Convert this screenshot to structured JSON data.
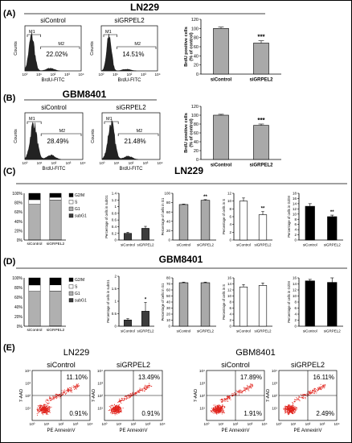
{
  "panels": {
    "A": {
      "label": "(A)",
      "title": "LN229",
      "hist1": {
        "name": "siControl",
        "m1": "M1",
        "m2": "M2",
        "pct": "22.02%",
        "ylabel": "Counts",
        "xlabel": "BrdU-FITC"
      },
      "hist2": {
        "name": "siGRPEL2",
        "m1": "M1",
        "m2": "M2",
        "pct": "14.51%",
        "ylabel": "Counts",
        "xlabel": "BrdU-FITC"
      }
    },
    "B": {
      "label": "(B)",
      "title": "GBM8401",
      "hist1": {
        "name": "siControl",
        "m1": "M1",
        "m2": "M2",
        "pct": "28.49%",
        "ylabel": "Counts",
        "xlabel": "BrdU-FITC"
      },
      "hist2": {
        "name": "siGRPEL2",
        "m1": "M1",
        "m2": "M2",
        "pct": "21.48%",
        "ylabel": "Counts",
        "xlabel": "BrdU-FITC"
      }
    },
    "C": {
      "label": "(C)",
      "title": "LN229"
    },
    "D": {
      "label": "(D)",
      "title": "GBM8401"
    },
    "E": {
      "label": "(E)",
      "cell1": "LN229",
      "cell2": "GBM8401",
      "plots": [
        {
          "name": "siControl",
          "ur": "11.10%",
          "lr": "0.91%"
        },
        {
          "name": "siGRPEL2",
          "ur": "13.49%",
          "lr": "0.91%"
        },
        {
          "name": "siControl",
          "ur": "17.89%",
          "lr": "1.91%"
        },
        {
          "name": "siGRPEL2",
          "ur": "16.11%",
          "lr": "2.49%"
        }
      ],
      "ylabel": "7-AAD",
      "xlabel": "PE AnnexinV"
    }
  },
  "flow_ticks": [
    "10⁰",
    "10¹",
    "10²",
    "10³",
    "10⁴"
  ],
  "flow_yticks": [
    "0",
    "10¹",
    "10²",
    "10³",
    "10⁴"
  ],
  "colors": {
    "gray_bar": "#a9a9a9",
    "dark_bar": "#3c3c3c",
    "white_bar": "#ffffff",
    "black_bar": "#000000",
    "dot": "#e0231c"
  },
  "chart_data": [
    {
      "id": "A-bar",
      "type": "bar",
      "categories": [
        "siControl",
        "siGRPEL2"
      ],
      "values": [
        100,
        68
      ],
      "errors": [
        3,
        5
      ],
      "ylabel": "BrdU positive cells\n(% of control)",
      "ylim": [
        0,
        120
      ],
      "yticks": [
        0,
        20,
        40,
        60,
        80,
        100,
        120
      ],
      "sig": [
        "",
        "***"
      ],
      "fill": "#a9a9a9"
    },
    {
      "id": "B-bar",
      "type": "bar",
      "categories": [
        "siControl",
        "siGRPEL2"
      ],
      "values": [
        100,
        77
      ],
      "errors": [
        2,
        3
      ],
      "ylabel": "BrdU positive cells\n(% of control)",
      "ylim": [
        0,
        120
      ],
      "yticks": [
        0,
        20,
        40,
        60,
        80,
        100,
        120
      ],
      "sig": [
        "",
        "***"
      ],
      "fill": "#a9a9a9"
    },
    {
      "id": "C-stack",
      "type": "bar",
      "stacked": true,
      "categories": [
        "siControl",
        "siGRPEL2"
      ],
      "series": [
        {
          "name": "subG1",
          "values": [
            0.3,
            0.4
          ]
        },
        {
          "name": "G1",
          "values": [
            76,
            85
          ]
        },
        {
          "name": "S",
          "values": [
            10,
            6
          ]
        },
        {
          "name": "G2/M",
          "values": [
            13.7,
            8.6
          ]
        }
      ],
      "ylim": [
        0,
        100
      ],
      "yticks": [
        "0%",
        "20%",
        "40%",
        "60%",
        "80%",
        "100%"
      ],
      "legend": [
        "G2/M",
        "S",
        "G1",
        "subG1"
      ]
    },
    {
      "id": "C-subG1",
      "type": "bar",
      "categories": [
        "siControl",
        "siGRPEL2"
      ],
      "values": [
        0.2,
        0.35
      ],
      "errors": [
        0.03,
        0.06
      ],
      "ylabel": "Percentage of cells in subG1",
      "ylim": [
        0,
        1.4
      ],
      "yticks": [
        0,
        0.2,
        0.4,
        0.6,
        0.8,
        1,
        1.2,
        1.4
      ],
      "sig": [
        "",
        ""
      ],
      "fill": "#3c3c3c"
    },
    {
      "id": "C-G1",
      "type": "bar",
      "categories": [
        "siControl",
        "siGRPEL2"
      ],
      "values": [
        76,
        85
      ],
      "errors": [
        1,
        1.5
      ],
      "ylabel": "Percentage of cells in G1",
      "ylim": [
        0,
        100
      ],
      "yticks": [
        0,
        20,
        40,
        60,
        80,
        100
      ],
      "sig": [
        "",
        "**"
      ],
      "fill": "#a9a9a9"
    },
    {
      "id": "C-S",
      "type": "bar",
      "categories": [
        "siControl",
        "siGRPEL2"
      ],
      "values": [
        10,
        6.5
      ],
      "errors": [
        0.8,
        0.8
      ],
      "ylabel": "Percentage of cells in S",
      "ylim": [
        0,
        12
      ],
      "yticks": [
        0,
        2,
        4,
        6,
        8,
        10,
        12
      ],
      "sig": [
        "",
        "**"
      ],
      "fill": "#ffffff"
    },
    {
      "id": "C-G2M",
      "type": "bar",
      "categories": [
        "siControl",
        "siGRPEL2"
      ],
      "values": [
        13,
        9
      ],
      "errors": [
        1,
        0.6
      ],
      "ylabel": "Percentage of cells in G2/M",
      "ylim": [
        0,
        18
      ],
      "yticks": [
        0,
        2,
        4,
        6,
        8,
        10,
        12,
        14,
        16,
        18
      ],
      "sig": [
        "",
        "**"
      ],
      "fill": "#000000"
    },
    {
      "id": "D-stack",
      "type": "bar",
      "stacked": true,
      "categories": [
        "siControl",
        "siGRPEL2"
      ],
      "series": [
        {
          "name": "subG1",
          "values": [
            0.2,
            0.6
          ]
        },
        {
          "name": "G1",
          "values": [
            72,
            72
          ]
        },
        {
          "name": "S",
          "values": [
            13,
            13
          ]
        },
        {
          "name": "G2/M",
          "values": [
            14.8,
            14.4
          ]
        }
      ],
      "ylim": [
        0,
        100
      ],
      "yticks": [
        "0%",
        "20%",
        "40%",
        "60%",
        "80%",
        "100%"
      ],
      "legend": [
        "G2/M",
        "S",
        "G1",
        "subG1"
      ]
    },
    {
      "id": "D-subG1",
      "type": "bar",
      "categories": [
        "siControl",
        "siGRPEL2"
      ],
      "values": [
        0.25,
        0.6
      ],
      "errors": [
        0.05,
        0.35
      ],
      "ylabel": "Percentage of cells in subG1",
      "ylim": [
        0,
        2
      ],
      "yticks": [
        0,
        0.5,
        1,
        1.5,
        2
      ],
      "sig": [
        "",
        "*"
      ],
      "fill": "#3c3c3c"
    },
    {
      "id": "D-G1",
      "type": "bar",
      "categories": [
        "siControl",
        "siGRPEL2"
      ],
      "values": [
        72,
        72
      ],
      "errors": [
        1,
        1
      ],
      "ylabel": "Percentage of cells in G1",
      "ylim": [
        0,
        80
      ],
      "yticks": [
        0,
        10,
        20,
        30,
        40,
        50,
        60,
        70,
        80
      ],
      "sig": [
        "",
        ""
      ],
      "fill": "#a9a9a9"
    },
    {
      "id": "D-S",
      "type": "bar",
      "categories": [
        "siControl",
        "siGRPEL2"
      ],
      "values": [
        13,
        13.5
      ],
      "errors": [
        0.8,
        0.8
      ],
      "ylabel": "Percentage of cells in S",
      "ylim": [
        0,
        16
      ],
      "yticks": [
        0,
        2,
        4,
        6,
        8,
        10,
        12,
        14,
        16
      ],
      "sig": [
        "",
        ""
      ],
      "fill": "#ffffff"
    },
    {
      "id": "D-G2M",
      "type": "bar",
      "categories": [
        "siControl",
        "siGRPEL2"
      ],
      "values": [
        15,
        14.5
      ],
      "errors": [
        0.5,
        1.5
      ],
      "ylabel": "Percentage of cells in G2/M",
      "ylim": [
        0,
        16
      ],
      "yticks": [
        0,
        2,
        4,
        6,
        8,
        10,
        12,
        14,
        16
      ],
      "sig": [
        "",
        ""
      ],
      "fill": "#000000"
    }
  ]
}
